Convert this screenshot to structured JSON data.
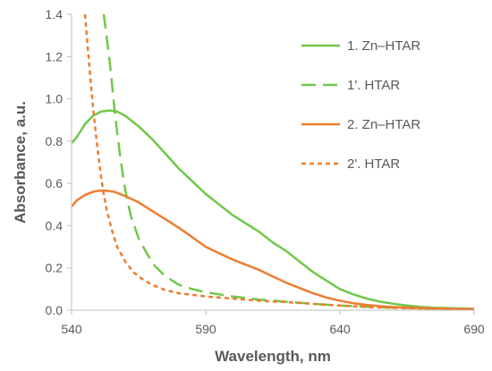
{
  "chart_data": {
    "type": "line",
    "xlabel": "Wavelength, nm",
    "ylabel": "Absorbance, a.u.",
    "xlim": [
      540,
      690
    ],
    "ylim": [
      0,
      1.4
    ],
    "x_ticks": [
      540,
      590,
      640,
      690
    ],
    "y_ticks": [
      0.0,
      0.2,
      0.4,
      0.6,
      0.8,
      1.0,
      1.2,
      1.4
    ],
    "x_tick_labels": [
      "540",
      "590",
      "640",
      "690"
    ],
    "y_tick_labels": [
      "0.0",
      "0.2",
      "0.4",
      "0.6",
      "0.8",
      "1.0",
      "1.2",
      "1.4"
    ],
    "grid": false,
    "legend_position": "top-right",
    "series": [
      {
        "name": "1. Zn–HTAR",
        "color": "#70c84a",
        "dash": "solid",
        "points": [
          [
            540,
            0.79
          ],
          [
            542,
            0.82
          ],
          [
            545,
            0.88
          ],
          [
            548,
            0.92
          ],
          [
            551,
            0.94
          ],
          [
            554,
            0.945
          ],
          [
            557,
            0.94
          ],
          [
            560,
            0.92
          ],
          [
            565,
            0.87
          ],
          [
            570,
            0.81
          ],
          [
            575,
            0.74
          ],
          [
            580,
            0.67
          ],
          [
            585,
            0.61
          ],
          [
            590,
            0.55
          ],
          [
            595,
            0.5
          ],
          [
            600,
            0.45
          ],
          [
            605,
            0.41
          ],
          [
            610,
            0.37
          ],
          [
            615,
            0.32
          ],
          [
            620,
            0.28
          ],
          [
            625,
            0.23
          ],
          [
            630,
            0.18
          ],
          [
            635,
            0.14
          ],
          [
            640,
            0.1
          ],
          [
            645,
            0.075
          ],
          [
            650,
            0.055
          ],
          [
            655,
            0.04
          ],
          [
            660,
            0.03
          ],
          [
            665,
            0.022
          ],
          [
            670,
            0.016
          ],
          [
            675,
            0.012
          ],
          [
            680,
            0.01
          ],
          [
            685,
            0.008
          ],
          [
            690,
            0.007
          ]
        ]
      },
      {
        "name": "1'. HTAR",
        "color": "#70c84a",
        "dash": "long",
        "points": [
          [
            552,
            1.4
          ],
          [
            553,
            1.3
          ],
          [
            554,
            1.2
          ],
          [
            555,
            1.08
          ],
          [
            556,
            0.95
          ],
          [
            557,
            0.84
          ],
          [
            558,
            0.74
          ],
          [
            559,
            0.65
          ],
          [
            560,
            0.57
          ],
          [
            562,
            0.45
          ],
          [
            565,
            0.34
          ],
          [
            568,
            0.27
          ],
          [
            571,
            0.21
          ],
          [
            575,
            0.16
          ],
          [
            580,
            0.12
          ],
          [
            585,
            0.1
          ],
          [
            590,
            0.085
          ],
          [
            600,
            0.065
          ],
          [
            610,
            0.05
          ],
          [
            620,
            0.04
          ],
          [
            630,
            0.03
          ],
          [
            640,
            0.022
          ],
          [
            650,
            0.016
          ],
          [
            660,
            0.012
          ],
          [
            670,
            0.009
          ],
          [
            680,
            0.007
          ],
          [
            690,
            0.006
          ]
        ]
      },
      {
        "name": "2. Zn–HTAR",
        "color": "#ed7d31",
        "dash": "solid",
        "points": [
          [
            540,
            0.49
          ],
          [
            542,
            0.52
          ],
          [
            545,
            0.545
          ],
          [
            548,
            0.56
          ],
          [
            550,
            0.565
          ],
          [
            553,
            0.565
          ],
          [
            556,
            0.56
          ],
          [
            560,
            0.54
          ],
          [
            565,
            0.51
          ],
          [
            570,
            0.47
          ],
          [
            575,
            0.43
          ],
          [
            580,
            0.39
          ],
          [
            585,
            0.345
          ],
          [
            590,
            0.3
          ],
          [
            595,
            0.27
          ],
          [
            600,
            0.24
          ],
          [
            605,
            0.215
          ],
          [
            610,
            0.19
          ],
          [
            615,
            0.16
          ],
          [
            620,
            0.13
          ],
          [
            625,
            0.105
          ],
          [
            630,
            0.08
          ],
          [
            635,
            0.06
          ],
          [
            640,
            0.045
          ],
          [
            645,
            0.033
          ],
          [
            650,
            0.025
          ],
          [
            655,
            0.019
          ],
          [
            660,
            0.015
          ],
          [
            670,
            0.01
          ],
          [
            680,
            0.007
          ],
          [
            690,
            0.005
          ]
        ]
      },
      {
        "name": "2'. HTAR",
        "color": "#ed7d31",
        "dash": "short",
        "points": [
          [
            545,
            1.4
          ],
          [
            546,
            1.25
          ],
          [
            547,
            1.1
          ],
          [
            548,
            0.96
          ],
          [
            549,
            0.84
          ],
          [
            550,
            0.73
          ],
          [
            551,
            0.63
          ],
          [
            552,
            0.55
          ],
          [
            553,
            0.48
          ],
          [
            555,
            0.38
          ],
          [
            557,
            0.3
          ],
          [
            560,
            0.23
          ],
          [
            563,
            0.18
          ],
          [
            566,
            0.15
          ],
          [
            570,
            0.12
          ],
          [
            575,
            0.095
          ],
          [
            580,
            0.08
          ],
          [
            590,
            0.065
          ],
          [
            600,
            0.055
          ],
          [
            610,
            0.045
          ],
          [
            620,
            0.038
          ],
          [
            630,
            0.03
          ],
          [
            640,
            0.022
          ],
          [
            650,
            0.015
          ],
          [
            660,
            0.011
          ],
          [
            670,
            0.008
          ],
          [
            680,
            0.006
          ],
          [
            690,
            0.005
          ]
        ]
      }
    ]
  }
}
